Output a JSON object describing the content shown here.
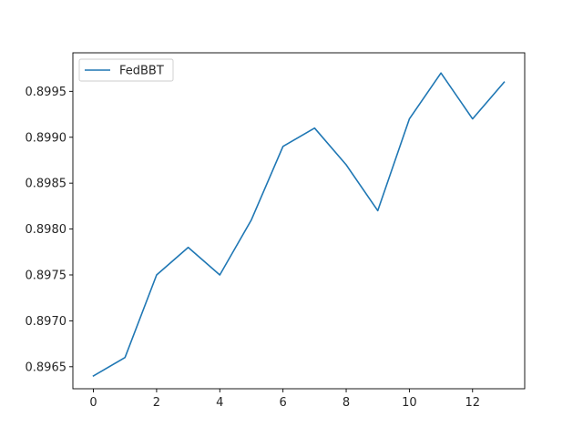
{
  "chart_data": {
    "type": "line",
    "title": "",
    "xlabel": "",
    "ylabel": "",
    "xlim": [
      -0.65,
      13.65
    ],
    "ylim": [
      0.89626,
      0.89992
    ],
    "x_ticks": [
      0,
      2,
      4,
      6,
      8,
      10,
      12
    ],
    "x_tick_labels": [
      "0",
      "2",
      "4",
      "6",
      "8",
      "10",
      "12"
    ],
    "y_ticks": [
      0.8965,
      0.897,
      0.8975,
      0.898,
      0.8985,
      0.899,
      0.8995
    ],
    "y_tick_labels": [
      "0.8965",
      "0.8970",
      "0.8975",
      "0.8980",
      "0.8985",
      "0.8990",
      "0.8995"
    ],
    "grid": false,
    "legend_position": "top-left",
    "series": [
      {
        "name": "FedBBT",
        "color": "#1f77b4",
        "x": [
          0,
          1,
          2,
          3,
          4,
          5,
          6,
          7,
          8,
          9,
          10,
          11,
          12,
          13
        ],
        "y": [
          0.8964,
          0.8966,
          0.8975,
          0.8978,
          0.8975,
          0.8981,
          0.8989,
          0.8991,
          0.8987,
          0.8982,
          0.8992,
          0.8997,
          0.8992,
          0.8996
        ]
      }
    ]
  }
}
